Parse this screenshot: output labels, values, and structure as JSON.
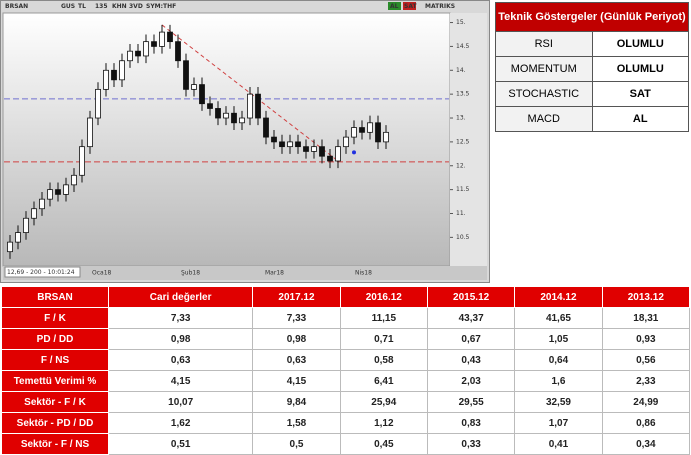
{
  "chart_data": {
    "type": "candlestick",
    "toolbar": [
      "BRSAN",
      "GUS",
      "TL",
      "135",
      "KHN",
      "3VD",
      "SYM:THF",
      "AL",
      "SAT",
      "MATRIKS"
    ],
    "status": "12,69 - 200 - 10:01:24",
    "x_labels": [
      "Oca18",
      "Şub18",
      "Mar18",
      "Nis18"
    ],
    "open": [
      10.2,
      10.4,
      10.6,
      10.9,
      11.1,
      11.3,
      11.5,
      11.4,
      11.6,
      11.8,
      12.4,
      13.0,
      13.6,
      14.0,
      13.8,
      14.2,
      14.4,
      14.3,
      14.6,
      14.5,
      14.8,
      14.6,
      14.2,
      13.6,
      13.7,
      13.3,
      13.2,
      13.0,
      13.1,
      12.9,
      13.0,
      13.5,
      13.0,
      12.6,
      12.5,
      12.4,
      12.5,
      12.4,
      12.3,
      12.4,
      12.2,
      12.1,
      12.4,
      12.6,
      12.8,
      12.7,
      12.9,
      12.5
    ],
    "high": [
      10.55,
      10.75,
      11.05,
      11.25,
      11.45,
      11.65,
      11.65,
      11.75,
      11.95,
      12.55,
      13.15,
      13.75,
      14.15,
      14.15,
      14.35,
      14.55,
      14.55,
      14.75,
      14.75,
      14.95,
      14.95,
      14.75,
      14.35,
      13.85,
      13.85,
      13.45,
      13.35,
      13.25,
      13.25,
      13.15,
      13.65,
      13.65,
      13.15,
      12.75,
      12.65,
      12.65,
      12.65,
      12.55,
      12.55,
      12.55,
      12.35,
      12.55,
      12.75,
      12.95,
      12.95,
      13.05,
      13.05,
      12.85
    ],
    "low": [
      10.05,
      10.25,
      10.45,
      10.75,
      10.95,
      11.15,
      11.25,
      11.25,
      11.45,
      11.65,
      12.25,
      12.85,
      13.45,
      13.65,
      13.65,
      14.05,
      14.15,
      14.15,
      14.35,
      14.35,
      14.45,
      14.05,
      13.45,
      13.45,
      13.15,
      13.05,
      12.85,
      12.85,
      12.75,
      12.75,
      12.85,
      12.85,
      12.45,
      12.35,
      12.25,
      12.25,
      12.25,
      12.15,
      12.15,
      12.05,
      11.95,
      11.95,
      12.25,
      12.45,
      12.55,
      12.55,
      12.35,
      12.35
    ],
    "close": [
      10.4,
      10.6,
      10.9,
      11.1,
      11.3,
      11.5,
      11.4,
      11.6,
      11.8,
      12.4,
      13.0,
      13.6,
      14.0,
      13.8,
      14.2,
      14.4,
      14.3,
      14.6,
      14.5,
      14.8,
      14.6,
      14.2,
      13.6,
      13.7,
      13.3,
      13.2,
      13.0,
      13.1,
      12.9,
      13.0,
      13.5,
      13.0,
      12.6,
      12.5,
      12.4,
      12.5,
      12.4,
      12.3,
      12.4,
      12.2,
      12.1,
      12.4,
      12.6,
      12.8,
      12.7,
      12.9,
      12.5,
      12.7
    ],
    "ylim": [
      9.9,
      15.2
    ],
    "yticks": [
      {
        "value": 15,
        "label": "15."
      },
      {
        "value": 14.5,
        "label": "14.5"
      },
      {
        "value": 14,
        "label": "14."
      },
      {
        "value": 13.5,
        "label": "13.5"
      },
      {
        "value": 13,
        "label": "13."
      },
      {
        "value": 12.5,
        "label": "12.5"
      },
      {
        "value": 12,
        "label": "12."
      },
      {
        "value": 11.5,
        "label": "11.5"
      },
      {
        "value": 11,
        "label": "11."
      },
      {
        "value": 10.5,
        "label": "10.5"
      }
    ],
    "hlines": [
      {
        "value": 13.4,
        "color": "#7070d0"
      },
      {
        "value": 12.08,
        "color": "#d04040"
      }
    ],
    "trendline": {
      "x": [
        19,
        41
      ],
      "y": [
        14.95,
        12.1
      ],
      "color": "#d04040"
    },
    "marker": {
      "x": 43,
      "y": 12.28,
      "color": "#2030e0"
    }
  },
  "indicators": {
    "title": "Teknik Göstergeler (Günlük Periyot)",
    "rows": [
      [
        "RSI",
        "OLUMLU"
      ],
      [
        "MOMENTUM",
        "OLUMLU"
      ],
      [
        "STOCHASTIC",
        "SAT"
      ],
      [
        "MACD",
        "AL"
      ]
    ]
  },
  "table": {
    "header": [
      "BRSAN",
      "Cari değerler",
      "2017.12",
      "2016.12",
      "2015.12",
      "2014.12",
      "2013.12"
    ],
    "rows": [
      [
        "F / K",
        "7,33",
        "7,33",
        "11,15",
        "43,37",
        "41,65",
        "18,31"
      ],
      [
        "PD / DD",
        "0,98",
        "0,98",
        "0,71",
        "0,67",
        "1,05",
        "0,93"
      ],
      [
        "F / NS",
        "0,63",
        "0,63",
        "0,58",
        "0,43",
        "0,64",
        "0,56"
      ],
      [
        "Temettü Verimi %",
        "4,15",
        "4,15",
        "6,41",
        "2,03",
        "1,6",
        "2,33"
      ],
      [
        "Sektör - F / K",
        "10,07",
        "9,84",
        "25,94",
        "29,55",
        "32,59",
        "24,99"
      ],
      [
        "Sektör - PD / DD",
        "1,62",
        "1,58",
        "1,12",
        "0,83",
        "1,07",
        "0,86"
      ],
      [
        "Sektör - F / NS",
        "0,51",
        "0,5",
        "0,45",
        "0,33",
        "0,41",
        "0,34"
      ]
    ]
  }
}
